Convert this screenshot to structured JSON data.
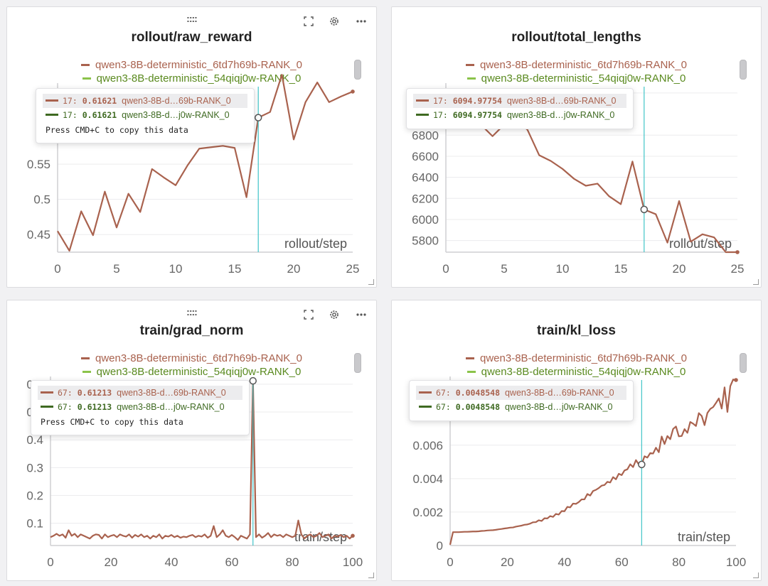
{
  "colors": {
    "series_a": "#a9624e",
    "series_b_legend": "#8bc34a",
    "series_b_text": "#5a8a1f",
    "series_b_tooltip": "#3f6a22",
    "cursor": "#40c4c8",
    "grid": "#ececee",
    "axis": "#cfcfd2",
    "tick_text": "#666666"
  },
  "panel_icons": [
    "drag-handle-icon",
    "fullscreen-icon",
    "gear-icon",
    "more-icon"
  ],
  "panels": [
    {
      "id": "raw_reward",
      "title": "rollout/raw_reward",
      "show_toolbar": true,
      "drag_handle": "::::",
      "legend": [
        "qwen3-8B-deterministic_6td7h69b-RANK_0",
        "qwen3-8B-deterministic_54qiqj0w-RANK_0"
      ],
      "xaxis_label": "rollout/step",
      "tooltip": {
        "rows": [
          {
            "step": "17:",
            "value": "0.61621",
            "name": "qwen3-8B-d…69b-RANK_0"
          },
          {
            "step": "17:",
            "value": "0.61621",
            "name": "qwen3-8B-d…j0w-RANK_0"
          }
        ],
        "hint": "Press CMD+C to copy this data"
      },
      "chart_data": {
        "type": "line",
        "xlabel": "rollout/step",
        "ylabel": "",
        "xlim": [
          0,
          25
        ],
        "ylim": [
          0.425,
          0.66
        ],
        "xticks": [
          0,
          5,
          10,
          15,
          20,
          25
        ],
        "yticks": [
          0.45,
          0.5,
          0.55
        ],
        "ytick_labels": [
          "0.45",
          "0.5",
          "0.55"
        ],
        "cursor_x": 17,
        "series": [
          {
            "name": "qwen3-8B-deterministic_6td7h69b-RANK_0",
            "x": [
              0,
              1,
              2,
              3,
              4,
              5,
              6,
              7,
              8,
              9,
              10,
              11,
              12,
              13,
              14,
              15,
              16,
              17,
              18,
              19,
              20,
              21,
              22,
              23,
              24,
              25
            ],
            "y": [
              0.455,
              0.427,
              0.483,
              0.449,
              0.511,
              0.46,
              0.508,
              0.482,
              0.543,
              0.531,
              0.52,
              0.548,
              0.572,
              0.574,
              0.576,
              0.573,
              0.503,
              0.616,
              0.624,
              0.677,
              0.585,
              0.638,
              0.666,
              0.638,
              0.646,
              0.653
            ]
          }
        ]
      }
    },
    {
      "id": "total_lengths",
      "title": "rollout/total_lengths",
      "show_toolbar": false,
      "legend": [
        "qwen3-8B-deterministic_6td7h69b-RANK_0",
        "qwen3-8B-deterministic_54qiqj0w-RANK_0"
      ],
      "xaxis_label": "rollout/step",
      "tooltip": {
        "rows": [
          {
            "step": "17:",
            "value": "6094.97754",
            "name": "qwen3-8B-d…69b-RANK_0"
          },
          {
            "step": "17:",
            "value": "6094.97754",
            "name": "qwen3-8B-d…j0w-RANK_0"
          }
        ],
        "hint": ""
      },
      "chart_data": {
        "type": "line",
        "xlabel": "rollout/step",
        "ylabel": "",
        "xlim": [
          0,
          25
        ],
        "ylim": [
          5690,
          7260
        ],
        "xticks": [
          0,
          5,
          10,
          15,
          20,
          25
        ],
        "yticks": [
          5800,
          6000,
          6200,
          6400,
          6600,
          6800,
          7200
        ],
        "ytick_labels": [
          "5800",
          "6000",
          "6200",
          "6400",
          "6600",
          "6800",
          "7200"
        ],
        "cursor_x": 17,
        "series": [
          {
            "name": "qwen3-8B-deterministic_6td7h69b-RANK_0",
            "x": [
              0,
              1,
              2,
              3,
              4,
              5,
              6,
              7,
              8,
              9,
              10,
              11,
              12,
              13,
              14,
              15,
              16,
              17,
              18,
              19,
              20,
              21,
              22,
              23,
              24,
              25
            ],
            "y": [
              7050,
              7000,
              6950,
              6900,
              6790,
              6900,
              6950,
              6850,
              6610,
              6555,
              6480,
              6385,
              6320,
              6340,
              6220,
              6145,
              6550,
              6095,
              6050,
              5780,
              6175,
              5790,
              5860,
              5830,
              5690,
              5690
            ]
          }
        ]
      }
    },
    {
      "id": "grad_norm",
      "title": "train/grad_norm",
      "show_toolbar": true,
      "drag_handle": "::::",
      "legend": [
        "qwen3-8B-deterministic_6td7h69b-RANK_0",
        "qwen3-8B-deterministic_54qiqj0w-RANK_0"
      ],
      "xaxis_label": "train/step",
      "tooltip": {
        "rows": [
          {
            "step": "67:",
            "value": "0.61213",
            "name": "qwen3-8B-d…69b-RANK_0"
          },
          {
            "step": "67:",
            "value": "0.61213",
            "name": "qwen3-8B-d…j0w-RANK_0"
          }
        ],
        "hint": "Press CMD+C to copy this data"
      },
      "chart_data": {
        "type": "line",
        "xlabel": "train/step",
        "ylabel": "",
        "xlim": [
          0,
          100
        ],
        "ylim": [
          0.02,
          0.615
        ],
        "xticks": [
          0,
          20,
          40,
          60,
          80,
          100
        ],
        "yticks": [
          0.1,
          0.2,
          0.3,
          0.4,
          0.5,
          0.6
        ],
        "ytick_labels": [
          "0.1",
          "0.2",
          "0.3",
          "0.4",
          "0.5",
          "0.6"
        ],
        "cursor_x": 67,
        "series": [
          {
            "name": "qwen3-8B-deterministic_6td7h69b-RANK_0",
            "x": [
              0,
              1,
              2,
              3,
              4,
              5,
              6,
              7,
              8,
              9,
              10,
              11,
              12,
              13,
              14,
              15,
              16,
              17,
              18,
              19,
              20,
              21,
              22,
              23,
              24,
              25,
              26,
              27,
              28,
              29,
              30,
              31,
              32,
              33,
              34,
              35,
              36,
              37,
              38,
              39,
              40,
              41,
              42,
              43,
              44,
              45,
              46,
              47,
              48,
              49,
              50,
              51,
              52,
              53,
              54,
              55,
              56,
              57,
              58,
              59,
              60,
              61,
              62,
              63,
              64,
              65,
              66,
              67,
              68,
              69,
              70,
              71,
              72,
              73,
              74,
              75,
              76,
              77,
              78,
              79,
              80,
              81,
              82,
              83,
              84,
              85,
              86,
              87,
              88,
              89,
              90,
              91,
              92,
              93,
              94,
              95,
              96,
              97,
              98,
              99,
              100
            ],
            "y": [
              0.05,
              0.055,
              0.062,
              0.055,
              0.06,
              0.048,
              0.075,
              0.055,
              0.062,
              0.05,
              0.06,
              0.055,
              0.05,
              0.045,
              0.055,
              0.06,
              0.058,
              0.045,
              0.06,
              0.05,
              0.055,
              0.058,
              0.05,
              0.06,
              0.055,
              0.052,
              0.06,
              0.048,
              0.058,
              0.052,
              0.06,
              0.05,
              0.055,
              0.045,
              0.055,
              0.05,
              0.06,
              0.045,
              0.055,
              0.052,
              0.058,
              0.05,
              0.055,
              0.048,
              0.052,
              0.05,
              0.055,
              0.058,
              0.05,
              0.055,
              0.052,
              0.06,
              0.048,
              0.055,
              0.09,
              0.05,
              0.06,
              0.075,
              0.055,
              0.05,
              0.058,
              0.05,
              0.04,
              0.055,
              0.05,
              0.045,
              0.06,
              0.612,
              0.05,
              0.06,
              0.048,
              0.055,
              0.065,
              0.05,
              0.06,
              0.055,
              0.058,
              0.05,
              0.06,
              0.055,
              0.05,
              0.055,
              0.11,
              0.06,
              0.045,
              0.055,
              0.06,
              0.05,
              0.055,
              0.065,
              0.05,
              0.055,
              0.06,
              0.045,
              0.055,
              0.052,
              0.058,
              0.05,
              0.055,
              0.045,
              0.055
            ]
          }
        ]
      }
    },
    {
      "id": "kl_loss",
      "title": "train/kl_loss",
      "show_toolbar": false,
      "legend": [
        "qwen3-8B-deterministic_6td7h69b-RANK_0",
        "qwen3-8B-deterministic_54qiqj0w-RANK_0"
      ],
      "xaxis_label": "train/step",
      "tooltip": {
        "rows": [
          {
            "step": "67:",
            "value": "0.0048548",
            "name": "qwen3-8B-d…69b-RANK_0"
          },
          {
            "step": "67:",
            "value": "0.0048548",
            "name": "qwen3-8B-d…j0w-RANK_0"
          }
        ],
        "hint": ""
      },
      "chart_data": {
        "type": "line",
        "xlabel": "train/step",
        "ylabel": "",
        "xlim": [
          0,
          100
        ],
        "ylim": [
          0,
          0.0099
        ],
        "xticks": [
          0,
          20,
          40,
          60,
          80,
          100
        ],
        "yticks": [
          0,
          0.002,
          0.004,
          0.006
        ],
        "ytick_labels": [
          "0",
          "0.002",
          "0.004",
          "0.006"
        ],
        "cursor_x": 67,
        "series": [
          {
            "name": "qwen3-8B-deterministic_6td7h69b-RANK_0",
            "x": [
              0,
              1,
              2,
              3,
              4,
              5,
              6,
              7,
              8,
              9,
              10,
              11,
              12,
              13,
              14,
              15,
              16,
              17,
              18,
              19,
              20,
              21,
              22,
              23,
              24,
              25,
              26,
              27,
              28,
              29,
              30,
              31,
              32,
              33,
              34,
              35,
              36,
              37,
              38,
              39,
              40,
              41,
              42,
              43,
              44,
              45,
              46,
              47,
              48,
              49,
              50,
              51,
              52,
              53,
              54,
              55,
              56,
              57,
              58,
              59,
              60,
              61,
              62,
              63,
              64,
              65,
              66,
              67,
              68,
              69,
              70,
              71,
              72,
              73,
              74,
              75,
              76,
              77,
              78,
              79,
              80,
              81,
              82,
              83,
              84,
              85,
              86,
              87,
              88,
              89,
              90,
              91,
              92,
              93,
              94,
              95,
              96,
              97,
              98,
              99,
              100
            ],
            "y": [
              5e-05,
              0.0008,
              0.0008,
              0.0008,
              0.00081,
              0.00082,
              0.00082,
              0.00083,
              0.00084,
              0.00084,
              0.00085,
              0.00087,
              0.00088,
              0.0009,
              0.00091,
              0.00092,
              0.00094,
              0.00097,
              0.00099,
              0.00102,
              0.00104,
              0.00107,
              0.00108,
              0.00113,
              0.00116,
              0.00119,
              0.00124,
              0.00126,
              0.00131,
              0.00139,
              0.0014,
              0.00151,
              0.00147,
              0.00163,
              0.00162,
              0.00176,
              0.00171,
              0.00189,
              0.00185,
              0.00206,
              0.00205,
              0.00231,
              0.00228,
              0.00251,
              0.00249,
              0.0026,
              0.00276,
              0.00276,
              0.00308,
              0.00299,
              0.00326,
              0.00333,
              0.00344,
              0.00358,
              0.00362,
              0.00381,
              0.00377,
              0.00409,
              0.00396,
              0.00429,
              0.00421,
              0.00449,
              0.00456,
              0.00486,
              0.00469,
              0.00511,
              0.00485,
              0.00485,
              0.00534,
              0.00526,
              0.00553,
              0.0055,
              0.00585,
              0.00558,
              0.00652,
              0.00607,
              0.00655,
              0.00636,
              0.00697,
              0.00712,
              0.00653,
              0.00655,
              0.00696,
              0.00674,
              0.00739,
              0.00729,
              0.00715,
              0.00792,
              0.00775,
              0.0072,
              0.00793,
              0.00817,
              0.00828,
              0.00853,
              0.0088,
              0.00819,
              0.00946,
              0.00799,
              0.00953,
              0.00993,
              0.0099
            ]
          }
        ]
      }
    }
  ]
}
